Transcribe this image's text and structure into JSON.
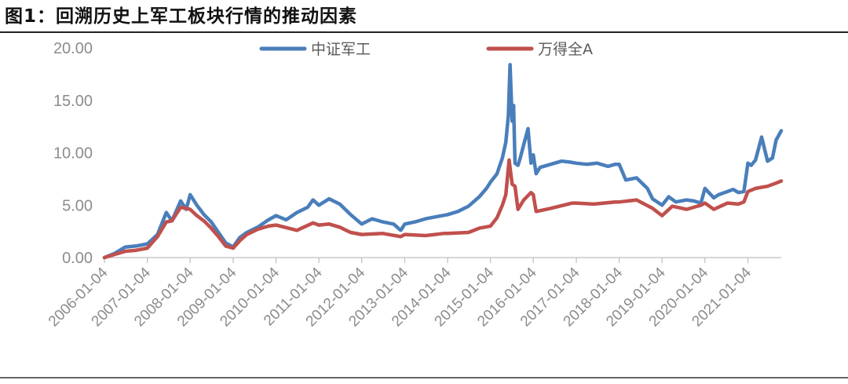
{
  "figure": {
    "title": "图1：回溯历史上军工板块行情的推动因素"
  },
  "colors": {
    "series_1": "#4a7ebb",
    "series_2": "#c0504d",
    "axis": "#bfbfbf",
    "tick_text": "#8c8c8c"
  },
  "chart_data": {
    "type": "line",
    "title": "",
    "xlabel": "",
    "ylabel": "",
    "ylim": [
      0,
      20
    ],
    "yticks": [
      "0.00",
      "5.00",
      "10.00",
      "15.00",
      "20.00"
    ],
    "xlim": [
      "2006-01-04",
      "2021-10-15"
    ],
    "xticks": [
      "2006-01-04",
      "2007-01-04",
      "2008-01-04",
      "2009-01-04",
      "2010-01-04",
      "2011-01-04",
      "2012-01-04",
      "2013-01-04",
      "2014-01-04",
      "2015-01-04",
      "2016-01-04",
      "2017-01-04",
      "2018-01-04",
      "2019-01-04",
      "2020-01-04",
      "2021-01-04"
    ],
    "grid": false,
    "legend_position": "top",
    "series": [
      {
        "name": "中证军工",
        "color": "#4a7ebb",
        "x": [
          "2006-01-04",
          "2006-04-01",
          "2006-07-01",
          "2006-10-01",
          "2007-01-04",
          "2007-04-01",
          "2007-06-15",
          "2007-08-01",
          "2007-10-15",
          "2007-12-01",
          "2008-01-04",
          "2008-03-01",
          "2008-05-01",
          "2008-07-01",
          "2008-09-01",
          "2008-11-01",
          "2009-01-04",
          "2009-03-01",
          "2009-05-01",
          "2009-08-01",
          "2009-11-01",
          "2010-01-04",
          "2010-04-01",
          "2010-07-01",
          "2010-10-01",
          "2010-11-15",
          "2011-01-04",
          "2011-04-01",
          "2011-07-01",
          "2011-10-01",
          "2012-01-04",
          "2012-04-01",
          "2012-07-01",
          "2012-10-01",
          "2012-12-01",
          "2013-01-04",
          "2013-04-01",
          "2013-07-01",
          "2013-10-01",
          "2014-01-04",
          "2014-04-01",
          "2014-07-01",
          "2014-10-01",
          "2014-12-01",
          "2015-01-04",
          "2015-03-01",
          "2015-04-15",
          "2015-05-15",
          "2015-06-05",
          "2015-06-20",
          "2015-07-08",
          "2015-07-20",
          "2015-08-01",
          "2015-08-26",
          "2015-09-15",
          "2015-10-15",
          "2015-11-20",
          "2015-12-15",
          "2016-01-04",
          "2016-01-28",
          "2016-03-01",
          "2016-06-01",
          "2016-09-01",
          "2016-11-15",
          "2017-01-04",
          "2017-04-01",
          "2017-07-01",
          "2017-10-01",
          "2017-12-01",
          "2018-01-04",
          "2018-03-01",
          "2018-06-01",
          "2018-09-01",
          "2018-10-15",
          "2019-01-04",
          "2019-03-01",
          "2019-05-01",
          "2019-08-01",
          "2019-10-01",
          "2019-12-01",
          "2020-01-04",
          "2020-03-20",
          "2020-05-01",
          "2020-07-15",
          "2020-09-01",
          "2020-10-15",
          "2020-12-01",
          "2021-01-04",
          "2021-02-01",
          "2021-03-10",
          "2021-05-01",
          "2021-06-20",
          "2021-08-01",
          "2021-09-01",
          "2021-10-15"
        ],
        "values": [
          0.0,
          0.4,
          1.0,
          1.1,
          1.3,
          2.2,
          4.3,
          3.5,
          5.4,
          4.6,
          6.0,
          5.0,
          4.1,
          3.4,
          2.4,
          1.4,
          1.0,
          1.9,
          2.4,
          2.9,
          3.6,
          4.0,
          3.6,
          4.3,
          4.8,
          5.5,
          5.0,
          5.6,
          5.1,
          4.1,
          3.2,
          3.7,
          3.4,
          3.2,
          2.6,
          3.2,
          3.4,
          3.7,
          3.9,
          4.1,
          4.4,
          4.9,
          5.8,
          6.6,
          7.2,
          8.0,
          9.5,
          11.0,
          13.5,
          18.4,
          13.0,
          14.5,
          9.0,
          8.8,
          9.5,
          10.8,
          12.3,
          9.0,
          9.8,
          8.0,
          8.6,
          8.9,
          9.2,
          9.1,
          9.0,
          8.9,
          9.0,
          8.7,
          8.9,
          8.9,
          7.4,
          7.6,
          6.6,
          5.6,
          5.0,
          5.8,
          5.3,
          5.5,
          5.4,
          5.2,
          6.6,
          5.7,
          6.0,
          6.3,
          6.5,
          6.2,
          6.3,
          9.0,
          8.8,
          9.3,
          11.5,
          9.2,
          9.5,
          11.2,
          12.1
        ]
      },
      {
        "name": "万得全A",
        "color": "#c0504d",
        "x": [
          "2006-01-04",
          "2006-04-01",
          "2006-07-01",
          "2006-10-01",
          "2007-01-04",
          "2007-04-01",
          "2007-06-15",
          "2007-08-01",
          "2007-10-15",
          "2008-01-04",
          "2008-03-01",
          "2008-05-01",
          "2008-07-01",
          "2008-09-01",
          "2008-11-01",
          "2009-01-04",
          "2009-03-01",
          "2009-05-01",
          "2009-08-01",
          "2009-11-01",
          "2010-01-04",
          "2010-07-01",
          "2010-11-15",
          "2011-01-04",
          "2011-04-01",
          "2011-07-01",
          "2011-10-01",
          "2012-01-04",
          "2012-07-01",
          "2012-12-01",
          "2013-01-04",
          "2013-07-01",
          "2013-12-01",
          "2014-01-04",
          "2014-07-01",
          "2014-10-01",
          "2015-01-04",
          "2015-03-01",
          "2015-04-15",
          "2015-05-15",
          "2015-06-12",
          "2015-07-08",
          "2015-08-01",
          "2015-08-26",
          "2015-10-15",
          "2015-12-15",
          "2016-01-04",
          "2016-01-28",
          "2016-06-01",
          "2016-12-01",
          "2017-01-04",
          "2017-06-01",
          "2017-12-01",
          "2018-01-04",
          "2018-06-01",
          "2018-10-15",
          "2019-01-04",
          "2019-04-01",
          "2019-08-01",
          "2019-12-01",
          "2020-01-04",
          "2020-03-20",
          "2020-07-15",
          "2020-10-15",
          "2020-12-01",
          "2021-01-04",
          "2021-03-10",
          "2021-06-20",
          "2021-09-01",
          "2021-10-15"
        ],
        "values": [
          0.0,
          0.3,
          0.6,
          0.7,
          0.9,
          2.0,
          3.4,
          3.5,
          4.8,
          4.6,
          4.0,
          3.5,
          2.8,
          2.0,
          1.1,
          0.9,
          1.6,
          2.2,
          2.7,
          3.0,
          3.1,
          2.6,
          3.3,
          3.1,
          3.2,
          2.9,
          2.4,
          2.2,
          2.3,
          2.0,
          2.2,
          2.1,
          2.3,
          2.3,
          2.4,
          2.8,
          3.0,
          3.8,
          5.0,
          6.0,
          9.3,
          7.0,
          6.8,
          4.6,
          5.5,
          6.2,
          6.0,
          4.4,
          4.7,
          5.2,
          5.2,
          5.1,
          5.3,
          5.3,
          5.5,
          4.7,
          4.0,
          4.9,
          4.6,
          5.0,
          5.2,
          4.6,
          5.2,
          5.1,
          5.3,
          6.3,
          6.6,
          6.8,
          7.1,
          7.3
        ]
      }
    ]
  }
}
